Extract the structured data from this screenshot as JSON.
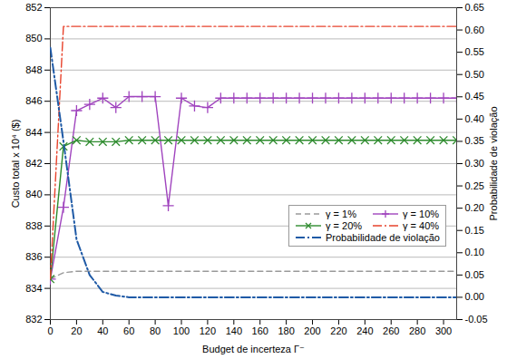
{
  "chart_data": {
    "type": "line",
    "xlabel": "Budget de incerteza Γ⁻",
    "ylabel": "Custo total x 10⁴ ($)",
    "y2label": "Probabilidade de violação",
    "x": [
      0,
      10,
      20,
      30,
      40,
      50,
      60,
      70,
      80,
      90,
      100,
      110,
      120,
      130,
      140,
      150,
      160,
      170,
      180,
      190,
      200,
      210,
      220,
      230,
      240,
      250,
      260,
      270,
      280,
      290,
      300,
      310
    ],
    "xlim": [
      0,
      310
    ],
    "xticks": [
      0,
      20,
      40,
      60,
      80,
      100,
      120,
      140,
      160,
      180,
      200,
      220,
      240,
      260,
      280,
      300
    ],
    "ylim": [
      832,
      852
    ],
    "yticks": [
      832,
      834,
      836,
      838,
      840,
      842,
      844,
      846,
      848,
      850,
      852
    ],
    "y2lim": [
      -0.05,
      0.65
    ],
    "y2ticks": [
      {
        "value": -0.05,
        "label": "-0.05"
      },
      {
        "value": 0,
        "label": "0.00"
      },
      {
        "value": 0.05,
        "label": "0.05"
      },
      {
        "value": 0.1,
        "label": "0.10"
      },
      {
        "value": 0.15,
        "label": "0.15"
      },
      {
        "value": 0.2,
        "label": "0.20"
      },
      {
        "value": 0.25,
        "label": "0.25"
      },
      {
        "value": 0.3,
        "label": "0.30"
      },
      {
        "value": 0.35,
        "label": "0.35"
      },
      {
        "value": 0.4,
        "label": "0.40"
      },
      {
        "value": 0.45,
        "label": "0.45"
      },
      {
        "value": 0.5,
        "label": "0.50"
      },
      {
        "value": 0.55,
        "label": "0.55"
      },
      {
        "value": 0.6,
        "label": "0.60"
      },
      {
        "value": 0.65,
        "label": "0.65"
      }
    ],
    "grid": true,
    "legend": "right",
    "series": [
      {
        "name": "γ = 1%",
        "color": "#9a9a9a",
        "line_style": "dashed",
        "marker": "none",
        "values": [
          834.6,
          835.0,
          835.1,
          835.1,
          835.1,
          835.1,
          835.1,
          835.1,
          835.1,
          835.1,
          835.1,
          835.1,
          835.1,
          835.1,
          835.1,
          835.1,
          835.1,
          835.1,
          835.1,
          835.1,
          835.1,
          835.1,
          835.1,
          835.1,
          835.1,
          835.1,
          835.1,
          835.1,
          835.1,
          835.1,
          835.1,
          835.1
        ]
      },
      {
        "name": "γ = 10%",
        "color": "#a044be",
        "line_style": "solid",
        "marker": "plus",
        "values": [
          834.6,
          839.2,
          845.4,
          845.8,
          846.2,
          845.6,
          846.3,
          846.3,
          846.3,
          839.3,
          846.2,
          845.7,
          845.6,
          846.2,
          846.2,
          846.2,
          846.2,
          846.2,
          846.2,
          846.2,
          846.2,
          846.2,
          846.2,
          846.2,
          846.2,
          846.2,
          846.2,
          846.2,
          846.2,
          846.2,
          846.2,
          846.2
        ]
      },
      {
        "name": "γ = 20%",
        "color": "#2e8b2e",
        "line_style": "solid",
        "marker": "times",
        "values": [
          834.6,
          843.1,
          843.5,
          843.4,
          843.4,
          843.4,
          843.5,
          843.5,
          843.5,
          843.5,
          843.5,
          843.5,
          843.5,
          843.5,
          843.5,
          843.5,
          843.5,
          843.5,
          843.5,
          843.5,
          843.5,
          843.5,
          843.5,
          843.5,
          843.5,
          843.5,
          843.5,
          843.5,
          843.5,
          843.5,
          843.5,
          843.5
        ]
      },
      {
        "name": "γ = 40%",
        "color": "#e8432c",
        "line_style": "dashdot",
        "marker": "none",
        "values": [
          834.6,
          850.8,
          850.8,
          850.8,
          850.8,
          850.8,
          850.8,
          850.8,
          850.8,
          850.8,
          850.8,
          850.8,
          850.8,
          850.8,
          850.8,
          850.8,
          850.8,
          850.8,
          850.8,
          850.8,
          850.8,
          850.8,
          850.8,
          850.8,
          850.8,
          850.8,
          850.8,
          850.8,
          850.8,
          850.8,
          850.8,
          850.8
        ]
      },
      {
        "name": "Probabilidade de violação",
        "color": "#1f5aa6",
        "line_style": "dashdot",
        "marker": "none",
        "axis": "y2",
        "values": [
          0.56,
          0.35,
          0.13,
          0.05,
          0.012,
          0.004,
          0,
          0,
          0,
          0,
          0,
          0,
          0,
          0,
          0,
          0,
          0,
          0,
          0,
          0,
          0,
          0,
          0,
          0,
          0,
          0,
          0,
          0,
          0,
          0,
          0,
          0
        ]
      }
    ]
  }
}
